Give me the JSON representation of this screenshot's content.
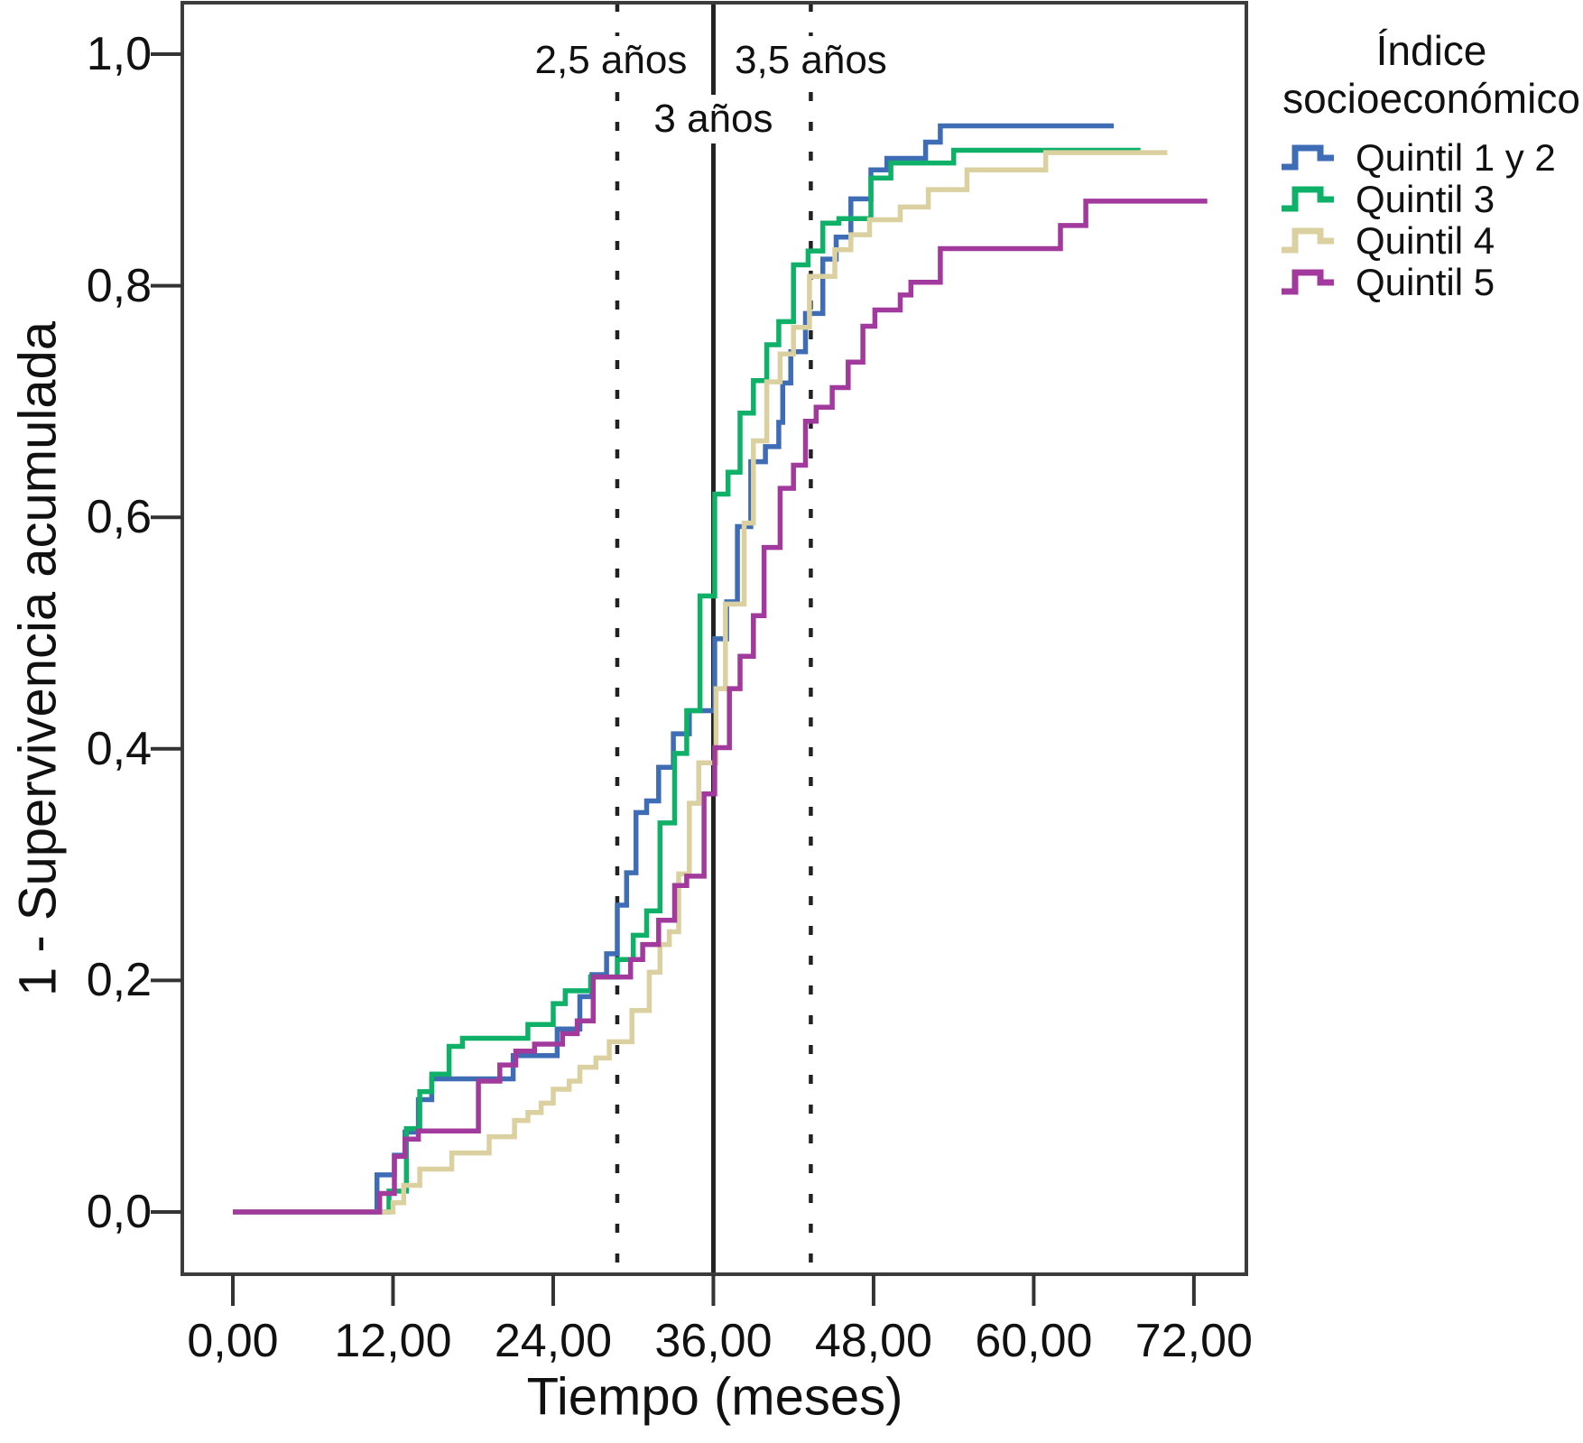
{
  "figure": {
    "y_axis": {
      "title": "1 - Supervivencia acumulada",
      "tick_labels": [
        "1,0",
        "0,8",
        "0,6",
        "0,4",
        "0,2",
        "0,0"
      ],
      "tick_values": [
        1.0,
        0.8,
        0.6,
        0.4,
        0.2,
        0.0
      ]
    },
    "x_axis": {
      "title": "Tiempo (meses)",
      "tick_labels": [
        "0,00",
        "12,00",
        "24,00",
        "36,00",
        "48,00",
        "60,00",
        "72,00"
      ],
      "tick_values": [
        0,
        12,
        24,
        36,
        48,
        60,
        72
      ]
    },
    "legend": {
      "title_line1": "Índice",
      "title_line2": "socioeconómico",
      "items": [
        {
          "label": "Quintil 1 y 2",
          "color": "#3e6db5"
        },
        {
          "label": "Quintil 3",
          "color": "#0fb168"
        },
        {
          "label": "Quintil 4",
          "color": "#dbd0a0"
        },
        {
          "label": "Quintil 5",
          "color": "#a13a9c"
        }
      ]
    },
    "annotations": [
      "2,5 años",
      "3 años",
      "3,5 años"
    ]
  },
  "chart_data": {
    "type": "line",
    "subtype": "step-cumulative-incidence",
    "title": "",
    "xlabel": "Tiempo (meses)",
    "ylabel": "1 - Supervivencia acumulada",
    "xlim": [
      -3.9,
      76
    ],
    "ylim": [
      -0.05,
      1.04
    ],
    "grid": false,
    "legend_position": "right",
    "legend_title": "Índice socioeconómico",
    "reference_lines": [
      {
        "label": "2,5 años",
        "x": 28.8,
        "style": "dashed",
        "row": 1
      },
      {
        "label": "3 años",
        "x": 36.0,
        "style": "solid",
        "row": 2
      },
      {
        "label": "3,5 años",
        "x": 43.3,
        "style": "dashed",
        "row": 1
      }
    ],
    "series": [
      {
        "name": "Quintil 1 y 2",
        "color": "#3e6db5",
        "end": 66,
        "points": [
          [
            0,
            0
          ],
          [
            10.8,
            0.032
          ],
          [
            12.1,
            0.049
          ],
          [
            12.9,
            0.069
          ],
          [
            13.9,
            0.097
          ],
          [
            14.9,
            0.115
          ],
          [
            21.0,
            0.135
          ],
          [
            24.3,
            0.158
          ],
          [
            26.0,
            0.186
          ],
          [
            26.9,
            0.205
          ],
          [
            28.0,
            0.223
          ],
          [
            28.8,
            0.265
          ],
          [
            29.5,
            0.293
          ],
          [
            30.2,
            0.345
          ],
          [
            31.0,
            0.355
          ],
          [
            31.9,
            0.384
          ],
          [
            33.0,
            0.413
          ],
          [
            34.2,
            0.433
          ],
          [
            36.1,
            0.495
          ],
          [
            37.0,
            0.527
          ],
          [
            37.8,
            0.592
          ],
          [
            38.8,
            0.648
          ],
          [
            39.9,
            0.661
          ],
          [
            40.9,
            0.682
          ],
          [
            41.2,
            0.716
          ],
          [
            41.8,
            0.743
          ],
          [
            42.9,
            0.776
          ],
          [
            44.2,
            0.823
          ],
          [
            45.2,
            0.842
          ],
          [
            46.3,
            0.875
          ],
          [
            47.8,
            0.9
          ],
          [
            49.0,
            0.91
          ],
          [
            51.9,
            0.924
          ],
          [
            53.0,
            0.938
          ]
        ]
      },
      {
        "name": "Quintil 3",
        "color": "#0fb168",
        "end": 68,
        "points": [
          [
            0,
            0
          ],
          [
            11.7,
            0.018
          ],
          [
            13.0,
            0.072
          ],
          [
            14.0,
            0.104
          ],
          [
            14.9,
            0.119
          ],
          [
            16.2,
            0.143
          ],
          [
            17.2,
            0.15
          ],
          [
            22.1,
            0.162
          ],
          [
            24.0,
            0.18
          ],
          [
            24.9,
            0.191
          ],
          [
            26.8,
            0.203
          ],
          [
            28.8,
            0.218
          ],
          [
            30.0,
            0.239
          ],
          [
            31.0,
            0.26
          ],
          [
            32.0,
            0.336
          ],
          [
            33.1,
            0.396
          ],
          [
            34.0,
            0.433
          ],
          [
            35.0,
            0.532
          ],
          [
            36.1,
            0.62
          ],
          [
            37.1,
            0.639
          ],
          [
            38.0,
            0.69
          ],
          [
            39.0,
            0.718
          ],
          [
            40.0,
            0.749
          ],
          [
            40.9,
            0.769
          ],
          [
            42.0,
            0.818
          ],
          [
            43.1,
            0.83
          ],
          [
            44.2,
            0.854
          ],
          [
            45.4,
            0.858
          ],
          [
            47.8,
            0.893
          ],
          [
            49.3,
            0.906
          ],
          [
            54.0,
            0.917
          ]
        ]
      },
      {
        "name": "Quintil 4",
        "color": "#dbd0a0",
        "end": 70,
        "points": [
          [
            0,
            0
          ],
          [
            12.0,
            0.008
          ],
          [
            12.8,
            0.023
          ],
          [
            14.0,
            0.037
          ],
          [
            16.4,
            0.051
          ],
          [
            19.2,
            0.065
          ],
          [
            21.1,
            0.079
          ],
          [
            22.1,
            0.086
          ],
          [
            23.1,
            0.094
          ],
          [
            24.0,
            0.106
          ],
          [
            25.2,
            0.113
          ],
          [
            26.0,
            0.125
          ],
          [
            27.2,
            0.133
          ],
          [
            28.2,
            0.147
          ],
          [
            29.9,
            0.174
          ],
          [
            31.2,
            0.207
          ],
          [
            32.0,
            0.231
          ],
          [
            32.7,
            0.242
          ],
          [
            33.4,
            0.292
          ],
          [
            34.2,
            0.353
          ],
          [
            34.9,
            0.388
          ],
          [
            36.2,
            0.452
          ],
          [
            36.9,
            0.525
          ],
          [
            38.3,
            0.595
          ],
          [
            39.0,
            0.666
          ],
          [
            40.0,
            0.717
          ],
          [
            41.0,
            0.741
          ],
          [
            42.0,
            0.764
          ],
          [
            43.2,
            0.808
          ],
          [
            45.1,
            0.831
          ],
          [
            46.3,
            0.844
          ],
          [
            47.7,
            0.857
          ],
          [
            50.0,
            0.868
          ],
          [
            52.1,
            0.883
          ],
          [
            55.0,
            0.9
          ],
          [
            60.9,
            0.915
          ]
        ]
      },
      {
        "name": "Quintil 5",
        "color": "#a13a9c",
        "end": 73,
        "points": [
          [
            0,
            0
          ],
          [
            11.0,
            0.016
          ],
          [
            12.1,
            0.048
          ],
          [
            12.9,
            0.063
          ],
          [
            13.9,
            0.07
          ],
          [
            18.4,
            0.113
          ],
          [
            20.0,
            0.127
          ],
          [
            21.2,
            0.139
          ],
          [
            22.6,
            0.145
          ],
          [
            24.7,
            0.154
          ],
          [
            25.8,
            0.165
          ],
          [
            27.0,
            0.203
          ],
          [
            29.8,
            0.218
          ],
          [
            30.7,
            0.231
          ],
          [
            31.9,
            0.252
          ],
          [
            33.1,
            0.282
          ],
          [
            34.0,
            0.29
          ],
          [
            35.3,
            0.361
          ],
          [
            36.1,
            0.401
          ],
          [
            37.2,
            0.452
          ],
          [
            38.0,
            0.48
          ],
          [
            39.0,
            0.515
          ],
          [
            39.8,
            0.574
          ],
          [
            41.0,
            0.625
          ],
          [
            42.0,
            0.645
          ],
          [
            42.9,
            0.683
          ],
          [
            43.7,
            0.695
          ],
          [
            44.9,
            0.712
          ],
          [
            46.1,
            0.734
          ],
          [
            47.2,
            0.765
          ],
          [
            48.1,
            0.779
          ],
          [
            50.0,
            0.792
          ],
          [
            50.8,
            0.803
          ],
          [
            53.0,
            0.832
          ],
          [
            62.0,
            0.852
          ],
          [
            63.9,
            0.873
          ]
        ]
      }
    ]
  }
}
